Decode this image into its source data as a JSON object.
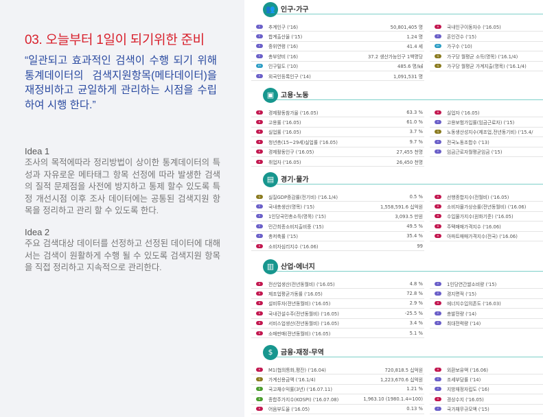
{
  "left": {
    "title": "03. 오늘부터 1일이 되기위한 준비",
    "quote": "“일관되고 효과적인 검색이 수행 되기 위해 통계데이터의 검색지원항목(메타데이터)을 재정비하고 균일하게 관리하는 시점을 수립하여 시행 한다.”",
    "ideas": [
      {
        "heading": "Idea 1",
        "body": "조사의 목적에따라 정리방법이 상이한 통계데이터의 특성과 자유로운 메타태그 항목 선정에 따라 발생한 검색의 질적 문제점을 사전에 방지하고 통제 할수 있도록 특정 개선시점 이후 조사 데이터에는 공통된 검색지원 항목을 정리하고 관리 할 수 있도록 한다."
      },
      {
        "heading": "Idea 2",
        "body": "주요 검색대상 데이터를 선정하고 선정된 데이터에 대해서는 검색이 원활하게 수행 될 수 있도록 검색지원 항목을 직접 정리하고 지속적으로 관리한다."
      }
    ]
  },
  "badge_colors": {
    "Y": "#6a5fc8",
    "H": "#c2174f",
    "EY": "#2a9cc4",
    "Q": "#8a7a1e",
    "D": "#4a9c2c"
  },
  "accent": "#17968e",
  "sections": [
    {
      "title": "인구·가구",
      "icon": "people-icon",
      "left": [
        [
          "Y",
          "추계인구 ('16)",
          "50,801,405 명"
        ],
        [
          "Y",
          "합계출산율 ('15)",
          "1.24 명"
        ],
        [
          "Y",
          "중위연령 ('16)",
          "41.4 세"
        ],
        [
          "Y",
          "총부양비 ('16)",
          "37.2 생산가능인구 1백명당"
        ],
        [
          "EY",
          "인구밀도 ('10)",
          "485.6 명/㎢"
        ],
        [
          "Y",
          "외국인등록인구 ('14)",
          "1,091,531 명"
        ]
      ],
      "right": [
        [
          "H",
          "국내인구이동자수 ('16.05)",
          ""
        ],
        [
          "Y",
          "혼인건수 ('15)",
          ""
        ],
        [
          "EY",
          "가구수 ('10)",
          ""
        ],
        [
          "Q",
          "가구당 월평균 소득(명목) ('16.1/4)",
          ""
        ],
        [
          "Q",
          "가구당 월평균 가계지출(명목) ('16.1/4)",
          ""
        ]
      ]
    },
    {
      "title": "고용·노동",
      "icon": "worker-icon",
      "left": [
        [
          "H",
          "경제활동참가율 ('16.05)",
          "63.3 %"
        ],
        [
          "H",
          "고용률 ('16.05)",
          "61.0 %"
        ],
        [
          "H",
          "실업률 ('16.05)",
          "3.7 %"
        ],
        [
          "H",
          "청년층(15~29세)실업률 ('16.05)",
          "9.7 %"
        ],
        [
          "H",
          "경제활동인구 ('16.05)",
          "27,455 천명"
        ],
        [
          "H",
          "취업자 ('16.05)",
          "26,450 천명"
        ]
      ],
      "right": [
        [
          "H",
          "실업자 ('16.05)",
          ""
        ],
        [
          "Y",
          "고용보험가입률(임금근로자) ('15)",
          ""
        ],
        [
          "Q",
          "노동생산성지수(제조업,전년동기비) ('15.4/",
          ""
        ],
        [
          "Y",
          "전국노동조합수 ('13)",
          ""
        ],
        [
          "Y",
          "임금근로자월평균임금 ('15)",
          ""
        ]
      ]
    },
    {
      "title": "경기·물가",
      "icon": "basket-icon",
      "left": [
        [
          "Q",
          "실질GDP증감률(전기비) ('16.1/4)",
          "0.5 %"
        ],
        [
          "Y",
          "국내총생산(명목) ('15)",
          "1,558,591.6 십억원"
        ],
        [
          "Y",
          "1인당국민총소득(명목) ('15)",
          "3,093.5 만원"
        ],
        [
          "Y",
          "민간최종소비지출비중 ('15)",
          "49.5 %"
        ],
        [
          "Y",
          "총저축률 ('15)",
          "35.4 %"
        ],
        [
          "H",
          "소비자심리지수 ('16.06)",
          "99"
        ]
      ],
      "right": [
        [
          "H",
          "선행종합지수(전월비) ('16.05)",
          ""
        ],
        [
          "H",
          "소비자물가상승률(전년동월비) ('16.06)",
          ""
        ],
        [
          "H",
          "수입물가지수(원화기준) ('16.05)",
          ""
        ],
        [
          "H",
          "주택매매가격지수 ('16.06)",
          ""
        ],
        [
          "H",
          "아파트매매가격지수(전국) ('16.06)",
          ""
        ]
      ]
    },
    {
      "title": "산업·에너지",
      "icon": "factory-icon",
      "left": [
        [
          "H",
          "전산업생산(전년동월비) ('16.05)",
          "4.8 %"
        ],
        [
          "H",
          "제조업평균가동률 ('16.05)",
          "72.8 %"
        ],
        [
          "H",
          "설비투자(전년동월비) ('16.05)",
          "2.9 %"
        ],
        [
          "H",
          "국내건설수주(전년동월비) ('16.05)",
          "-25.5 %"
        ],
        [
          "H",
          "서비스업생산(전년동월비) ('16.05)",
          "3.4 %"
        ],
        [
          "H",
          "소매판매(전년동월비) ('16.05)",
          "5.1 %"
        ]
      ],
      "right": [
        [
          "Y",
          "1인당연간쌀소비량 ('15)",
          ""
        ],
        [
          "Y",
          "경지면적 ('15)",
          ""
        ],
        [
          "H",
          "에너지수입의존도 ('16.03)",
          ""
        ],
        [
          "Y",
          "총발전량 ('14)",
          ""
        ],
        [
          "Y",
          "최대전력량 ('14)",
          ""
        ]
      ]
    },
    {
      "title": "금융·재정·무역",
      "icon": "money-bag-icon",
      "left": [
        [
          "H",
          "M1(협의통화,평잔) ('16.04)",
          "720,818.5 십억원"
        ],
        [
          "Q",
          "가계신용금액 ('16.1/4)",
          "1,223,670.6 십억원"
        ],
        [
          "D",
          "국고채수익률(3년) ('16.07.11)",
          "1.21 %"
        ],
        [
          "D",
          "종합주가지수(KOSPI) ('16.07.08)",
          "1,963.10 (1980.1.4=100)"
        ],
        [
          "H",
          "어음부도율 ('16.05)",
          "0.13 %"
        ]
      ],
      "right": [
        [
          "H",
          "외환보유액 ('16.06)",
          ""
        ],
        [
          "Y",
          "조세부담률 ('14)",
          ""
        ],
        [
          "Y",
          "지방재정자립도 ('16)",
          ""
        ],
        [
          "H",
          "경상수지 ('16.05)",
          ""
        ],
        [
          "Y",
          "국가채무규모액 ('15)",
          ""
        ]
      ]
    }
  ]
}
